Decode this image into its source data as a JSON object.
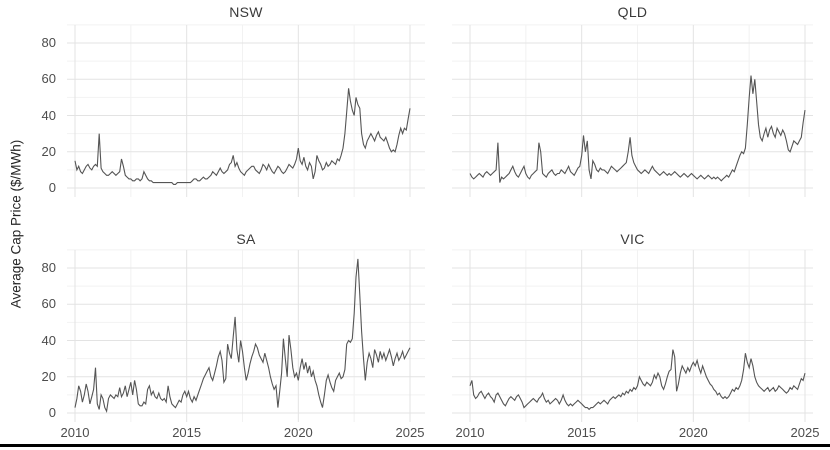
{
  "chart_data": {
    "type": "line",
    "title": "",
    "xlabel": "",
    "ylabel": "Average Cap Price ($/MWh)",
    "x_unit": "year",
    "x_start": 2010,
    "x_end": 2025,
    "frequency": "monthly",
    "x_ticks": [
      2010,
      2015,
      2020,
      2025
    ],
    "y_ticks": [
      0,
      20,
      40,
      60,
      80
    ],
    "x_minor_gridlines": [
      2012.5,
      2017.5,
      2022.5
    ],
    "y_minor_gridlines": [
      10,
      30,
      50,
      70,
      90
    ],
    "ylim": [
      -5,
      90
    ],
    "grid": "major+minor",
    "legend": "none",
    "facet_layout": "2x2",
    "colors": {
      "line": "#555555",
      "grid_major": "#e3e3e3",
      "grid_minor": "#f2f2f2",
      "tick_text": "#4d4d4d",
      "title_text": "#3a3a3a",
      "axis_label_text": "#262626",
      "divider": "#000000",
      "background": "#ffffff"
    },
    "facets": [
      {
        "name": "NSW",
        "values": [
          15,
          10,
          12,
          9,
          8,
          10,
          12,
          13,
          11,
          10,
          12,
          13,
          12,
          30,
          11,
          9,
          8,
          7,
          7,
          8,
          9,
          8,
          7,
          8,
          9,
          16,
          12,
          7,
          6,
          5,
          5,
          4,
          4,
          5,
          5,
          4,
          5,
          9,
          7,
          5,
          4,
          4,
          3,
          3,
          3,
          3,
          3,
          3,
          3,
          3,
          3,
          3,
          3,
          2,
          2,
          3,
          3,
          3,
          3,
          3,
          3,
          3,
          3,
          4,
          5,
          5,
          4,
          4,
          5,
          6,
          5,
          5,
          6,
          7,
          9,
          8,
          7,
          9,
          11,
          9,
          8,
          9,
          10,
          13,
          14,
          18,
          12,
          14,
          11,
          9,
          8,
          7,
          9,
          10,
          11,
          12,
          12,
          10,
          9,
          8,
          10,
          13,
          12,
          10,
          13,
          11,
          9,
          8,
          10,
          12,
          11,
          9,
          8,
          9,
          11,
          13,
          12,
          11,
          13,
          16,
          22,
          15,
          13,
          17,
          12,
          10,
          14,
          12,
          5,
          9,
          18,
          15,
          13,
          10,
          11,
          14,
          12,
          13,
          15,
          14,
          13,
          16,
          15,
          18,
          22,
          30,
          42,
          55,
          48,
          43,
          40,
          50,
          46,
          44,
          30,
          24,
          22,
          26,
          28,
          30,
          28,
          26,
          29,
          31,
          28,
          27,
          26,
          28,
          25,
          22,
          20,
          21,
          20,
          24,
          29,
          33,
          30,
          33,
          32,
          38,
          44
        ]
      },
      {
        "name": "QLD",
        "values": [
          8,
          6,
          5,
          6,
          7,
          8,
          7,
          6,
          8,
          9,
          8,
          7,
          8,
          9,
          10,
          25,
          3,
          6,
          5,
          6,
          7,
          8,
          10,
          12,
          9,
          7,
          6,
          8,
          10,
          12,
          8,
          6,
          5,
          7,
          8,
          9,
          10,
          25,
          20,
          8,
          7,
          6,
          8,
          9,
          10,
          8,
          7,
          8,
          8,
          10,
          9,
          8,
          10,
          12,
          9,
          8,
          7,
          9,
          11,
          12,
          18,
          29,
          20,
          26,
          10,
          5,
          15,
          13,
          10,
          9,
          11,
          10,
          10,
          9,
          8,
          10,
          12,
          11,
          10,
          9,
          10,
          11,
          12,
          13,
          14,
          20,
          28,
          18,
          14,
          12,
          10,
          9,
          8,
          9,
          10,
          9,
          8,
          10,
          12,
          10,
          9,
          8,
          7,
          8,
          9,
          8,
          7,
          8,
          7,
          8,
          9,
          8,
          7,
          6,
          7,
          8,
          7,
          6,
          7,
          8,
          7,
          6,
          5,
          6,
          7,
          6,
          5,
          6,
          7,
          6,
          5,
          6,
          5,
          6,
          5,
          4,
          5,
          6,
          7,
          6,
          8,
          10,
          9,
          12,
          15,
          18,
          20,
          19,
          22,
          35,
          50,
          62,
          52,
          60,
          48,
          35,
          28,
          26,
          30,
          33,
          28,
          32,
          34,
          30,
          28,
          33,
          31,
          29,
          32,
          30,
          26,
          21,
          20,
          23,
          26,
          25,
          24,
          26,
          28,
          36,
          43
        ]
      },
      {
        "name": "SA",
        "values": [
          3,
          8,
          15,
          12,
          6,
          10,
          16,
          12,
          5,
          9,
          13,
          25,
          5,
          2,
          10,
          8,
          3,
          1,
          8,
          10,
          9,
          8,
          10,
          9,
          14,
          9,
          11,
          15,
          9,
          13,
          17,
          10,
          18,
          13,
          5,
          4,
          4,
          6,
          5,
          13,
          15,
          10,
          12,
          9,
          8,
          11,
          8,
          7,
          8,
          6,
          15,
          9,
          5,
          4,
          3,
          5,
          7,
          6,
          10,
          12,
          9,
          12,
          8,
          6,
          9,
          7,
          10,
          13,
          16,
          19,
          21,
          23,
          25,
          20,
          18,
          22,
          26,
          31,
          34,
          29,
          17,
          19,
          38,
          33,
          30,
          42,
          53,
          35,
          28,
          40,
          34,
          25,
          18,
          22,
          27,
          31,
          34,
          38,
          36,
          32,
          30,
          28,
          33,
          29,
          25,
          20,
          16,
          13,
          15,
          3,
          12,
          22,
          41,
          30,
          20,
          43,
          35,
          25,
          20,
          22,
          18,
          25,
          30,
          24,
          28,
          22,
          26,
          20,
          23,
          18,
          15,
          10,
          6,
          3,
          10,
          18,
          21,
          17,
          14,
          12,
          18,
          20,
          22,
          19,
          20,
          24,
          38,
          40,
          39,
          41,
          55,
          75,
          85,
          65,
          45,
          30,
          18,
          28,
          33,
          30,
          25,
          35,
          32,
          28,
          34,
          30,
          33,
          29,
          32,
          35,
          31,
          26,
          30,
          33,
          29,
          31,
          34,
          30,
          32,
          34,
          36
        ]
      },
      {
        "name": "VIC",
        "values": [
          15,
          18,
          10,
          8,
          9,
          11,
          12,
          10,
          8,
          10,
          11,
          9,
          8,
          6,
          10,
          11,
          9,
          7,
          5,
          4,
          6,
          8,
          9,
          8,
          7,
          9,
          10,
          8,
          6,
          3,
          4,
          5,
          6,
          7,
          8,
          7,
          6,
          8,
          9,
          11,
          8,
          6,
          7,
          5,
          6,
          7,
          8,
          7,
          5,
          7,
          10,
          7,
          5,
          4,
          5,
          4,
          5,
          6,
          7,
          6,
          5,
          4,
          3,
          3,
          2,
          3,
          3,
          4,
          5,
          6,
          5,
          6,
          7,
          6,
          5,
          7,
          8,
          9,
          8,
          9,
          10,
          9,
          11,
          10,
          12,
          11,
          13,
          12,
          14,
          13,
          15,
          20,
          18,
          16,
          15,
          17,
          16,
          15,
          17,
          21,
          19,
          22,
          20,
          15,
          13,
          16,
          20,
          23,
          24,
          35,
          31,
          12,
          16,
          22,
          26,
          24,
          22,
          25,
          23,
          26,
          28,
          26,
          29,
          25,
          22,
          26,
          23,
          20,
          18,
          16,
          15,
          13,
          12,
          10,
          11,
          9,
          8,
          9,
          8,
          9,
          11,
          13,
          12,
          14,
          13,
          15,
          18,
          24,
          33,
          28,
          25,
          30,
          26,
          20,
          17,
          15,
          14,
          13,
          12,
          13,
          14,
          12,
          13,
          14,
          12,
          13,
          15,
          14,
          13,
          12,
          11,
          12,
          14,
          13,
          15,
          14,
          13,
          16,
          19,
          18,
          22
        ]
      }
    ]
  }
}
